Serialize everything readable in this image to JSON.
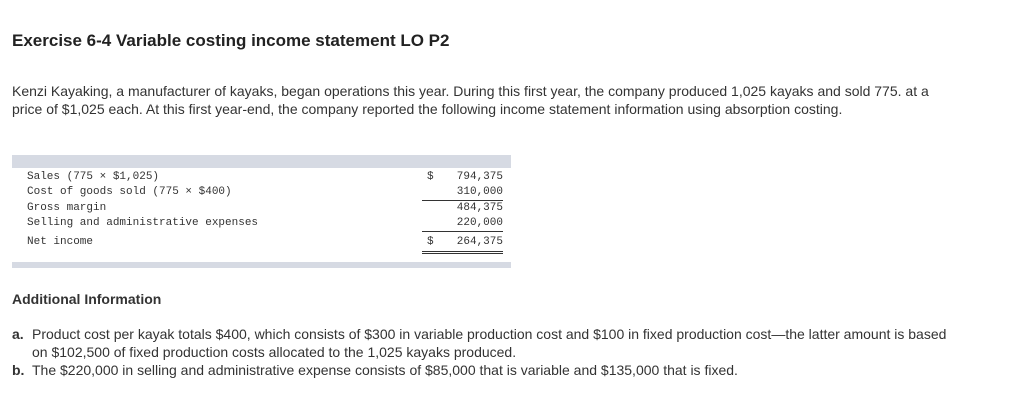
{
  "header": {
    "title": "Exercise 6-4 Variable costing income statement LO P2"
  },
  "intro": "Kenzi Kayaking, a manufacturer of kayaks, began operations this year. During this first year, the company produced 1,025 kayaks and sold 775. at a price of $1,025 each. At this first year-end, the company reported the following income statement information using absorption costing.",
  "table": {
    "rows": [
      {
        "label": "Sales (775 × $1,025)",
        "currency": "$",
        "amount": "794,375"
      },
      {
        "label": "Cost of goods sold (775 × $400)",
        "amount": "310,000"
      },
      {
        "label": "Gross margin",
        "amount": "484,375"
      },
      {
        "label": "Selling and administrative expenses",
        "amount": "220,000"
      },
      {
        "label": "Net income",
        "currency": "$",
        "amount": "264,375"
      }
    ]
  },
  "additional": {
    "heading": "Additional Information",
    "items": [
      {
        "marker": "a.",
        "text": "Product cost per kayak totals $400, which consists of $300 in variable production cost and $100 in fixed production cost—the latter amount is based on $102,500 of fixed production costs allocated to the 1,025 kayaks produced."
      },
      {
        "marker": "b.",
        "text": "The $220,000 in selling and administrative expense consists of $85,000 that is variable and $135,000 that is fixed."
      }
    ]
  }
}
